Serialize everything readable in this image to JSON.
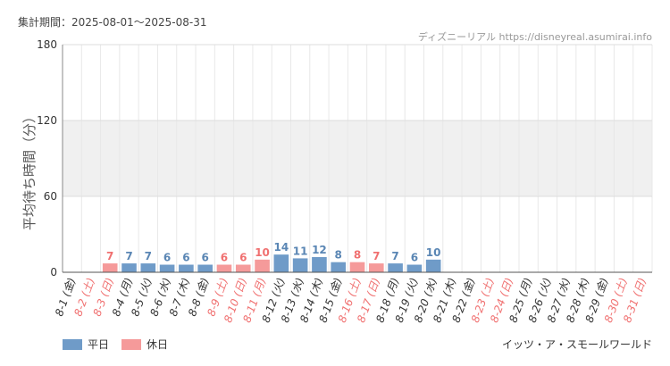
{
  "period_label": "集計期間：2025-08-01〜2025-08-31",
  "source_label": "ディズニーリアル https://disneyreal.asumirai.info",
  "footer_label": "イッツ・ア・スモールワールド",
  "colors": {
    "weekday": "#6f9bc8",
    "holiday": "#f59a9a",
    "weekday_text": "#5a86b4",
    "holiday_text": "#f07070",
    "axis_text": "#333333",
    "band": "#f0f0f0"
  },
  "chart_data": {
    "type": "bar",
    "ylabel": "平均待ち時間（分）",
    "ylim": [
      0,
      180
    ],
    "yticks": [
      0,
      60,
      120,
      180
    ],
    "shaded_band": [
      60,
      120
    ],
    "grid": true,
    "legend": {
      "position": "bottom-left",
      "items": [
        {
          "label": "平日",
          "type": "weekday"
        },
        {
          "label": "休日",
          "type": "holiday"
        }
      ]
    },
    "categories": [
      "8-1 (金)",
      "8-2 (土)",
      "8-3 (日)",
      "8-4 (月)",
      "8-5 (火)",
      "8-6 (水)",
      "8-7 (木)",
      "8-8 (金)",
      "8-9 (土)",
      "8-10 (日)",
      "8-11 (月)",
      "8-12 (火)",
      "8-13 (水)",
      "8-14 (木)",
      "8-15 (金)",
      "8-16 (土)",
      "8-17 (日)",
      "8-18 (月)",
      "8-19 (火)",
      "8-20 (水)",
      "8-21 (木)",
      "8-22 (金)",
      "8-23 (土)",
      "8-24 (日)",
      "8-25 (月)",
      "8-26 (火)",
      "8-27 (水)",
      "8-28 (木)",
      "8-29 (金)",
      "8-30 (土)",
      "8-31 (日)"
    ],
    "day_type": [
      "weekday",
      "holiday",
      "holiday",
      "weekday",
      "weekday",
      "weekday",
      "weekday",
      "weekday",
      "holiday",
      "holiday",
      "holiday",
      "weekday",
      "weekday",
      "weekday",
      "weekday",
      "holiday",
      "holiday",
      "weekday",
      "weekday",
      "weekday",
      "weekday",
      "weekday",
      "holiday",
      "holiday",
      "weekday",
      "weekday",
      "weekday",
      "weekday",
      "weekday",
      "holiday",
      "holiday"
    ],
    "values": [
      null,
      null,
      7,
      7,
      7,
      6,
      6,
      6,
      6,
      6,
      10,
      14,
      11,
      12,
      8,
      8,
      7,
      7,
      6,
      10,
      null,
      null,
      null,
      null,
      null,
      null,
      null,
      null,
      null,
      null,
      null
    ]
  }
}
